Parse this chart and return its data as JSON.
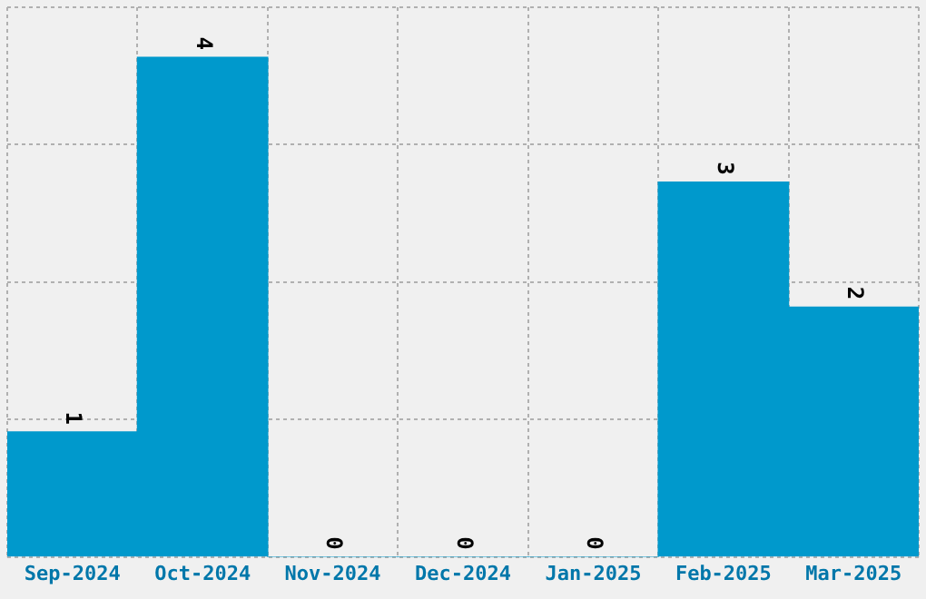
{
  "chart_data": {
    "type": "bar",
    "categories": [
      "Sep-2024",
      "Oct-2024",
      "Nov-2024",
      "Dec-2024",
      "Jan-2025",
      "Feb-2025",
      "Mar-2025"
    ],
    "values": [
      1,
      4,
      0,
      0,
      0,
      3,
      2
    ],
    "color": "#0099cc",
    "data_labels": true,
    "ylim": [
      0,
      4.4
    ],
    "yticks": [
      {
        "value": 0,
        "label": null
      },
      {
        "value": 1.1,
        "label": null
      },
      {
        "value": 2.2,
        "label": null
      },
      {
        "value": 3.3,
        "label": null
      },
      {
        "value": 4.4,
        "label": null
      }
    ],
    "tick_labels": "x",
    "grid": true,
    "legend": false
  }
}
